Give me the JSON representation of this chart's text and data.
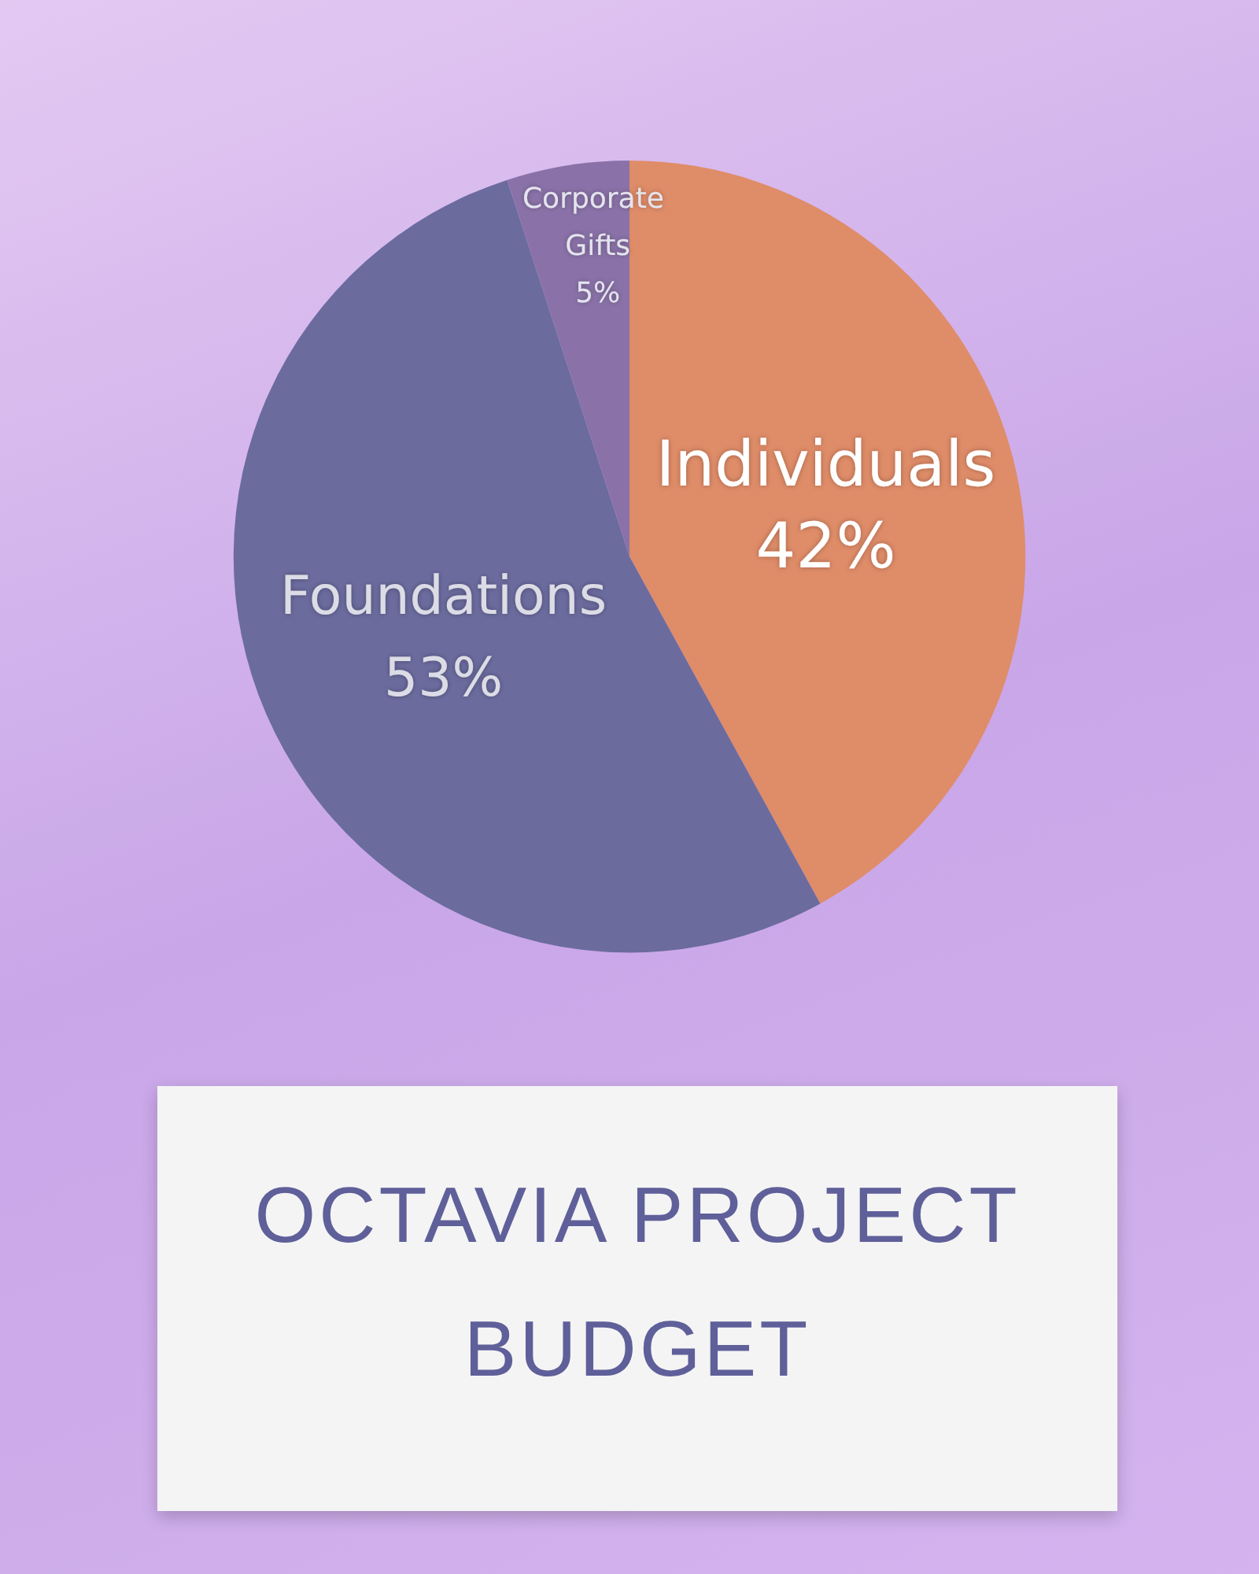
{
  "chart_data": {
    "type": "pie",
    "title": "OCTAVIA PROJECT BUDGET",
    "categories": [
      "Individuals",
      "Foundations",
      "Corporate Gifts"
    ],
    "values": [
      42,
      53,
      5
    ],
    "colors": [
      "#df8c68",
      "#6b6b9e",
      "#8a72a8"
    ],
    "value_labels": [
      "42%",
      "53%",
      "5%"
    ],
    "legend": false
  }
}
